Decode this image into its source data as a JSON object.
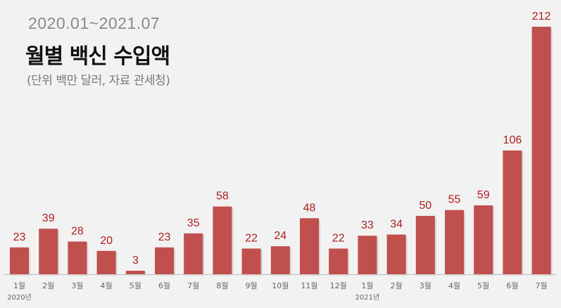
{
  "header": {
    "period": "2020.01~2021.07",
    "title": "월별 백신 수입액",
    "unit_note": "(단위 백만 달러, 자료 관세청)"
  },
  "colors": {
    "bar": "#c0504d",
    "value_label": "#b01e1e",
    "axis_label": "#666666"
  },
  "chart_data": {
    "type": "bar",
    "title": "월별 백신 수입액",
    "subtitle": "(단위 백만 달러, 자료 관세청)",
    "categories": [
      "1월",
      "2월",
      "3월",
      "4월",
      "5월",
      "6월",
      "7월",
      "8월",
      "9월",
      "10월",
      "11월",
      "12월",
      "1월",
      "2월",
      "3월",
      "4월",
      "5월",
      "6월",
      "7월"
    ],
    "year_labels": [
      {
        "label": "2020년",
        "index": 0
      },
      {
        "label": "2021년",
        "index": 12
      }
    ],
    "values": [
      23,
      39,
      28,
      20,
      3,
      23,
      35,
      58,
      22,
      24,
      48,
      22,
      33,
      34,
      50,
      55,
      59,
      106,
      212
    ],
    "ylim": [
      0,
      212
    ],
    "grid": false,
    "legend": "none"
  }
}
